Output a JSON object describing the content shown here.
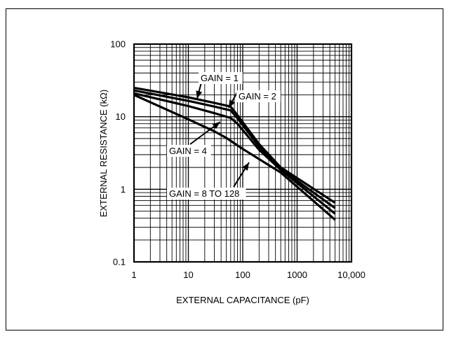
{
  "chart_data": {
    "type": "line",
    "title": "",
    "xlabel": "EXTERNAL CAPACITANCE (pF)",
    "ylabel": "EXTERNAL RESISTANCE (kΩ)",
    "x_scale": "log",
    "y_scale": "log",
    "xlim": [
      1,
      10000
    ],
    "ylim": [
      0.1,
      100
    ],
    "x_ticks": [
      "1",
      "10",
      "100",
      "1000",
      "10,000"
    ],
    "y_ticks": [
      "0.1",
      "1",
      "10",
      "100"
    ],
    "grid": true,
    "series": [
      {
        "name": "GAIN = 1",
        "x": [
          1,
          10,
          30,
          60,
          80,
          200,
          500,
          5000
        ],
        "y": [
          25,
          18.5,
          15.5,
          13.8,
          10.5,
          4.2,
          2.0,
          0.65
        ]
      },
      {
        "name": "GAIN = 2",
        "x": [
          1,
          10,
          30,
          60,
          80,
          200,
          500,
          5000
        ],
        "y": [
          23,
          16.5,
          13.8,
          12.2,
          9.5,
          3.9,
          1.9,
          0.55
        ]
      },
      {
        "name": "GAIN = 4",
        "x": [
          1,
          10,
          30,
          60,
          80,
          200,
          500,
          5000
        ],
        "y": [
          21,
          14.0,
          11.2,
          9.6,
          8.0,
          3.5,
          1.85,
          0.46
        ]
      },
      {
        "name": "GAIN = 8 TO 128",
        "x": [
          1,
          10,
          30,
          50,
          100,
          500,
          5000
        ],
        "y": [
          20,
          9.2,
          6.3,
          5.1,
          3.6,
          1.7,
          0.38
        ]
      }
    ],
    "annotations": [
      "GAIN = 1",
      "GAIN = 2",
      "GAIN = 4",
      "GAIN = 8 TO 128"
    ]
  }
}
